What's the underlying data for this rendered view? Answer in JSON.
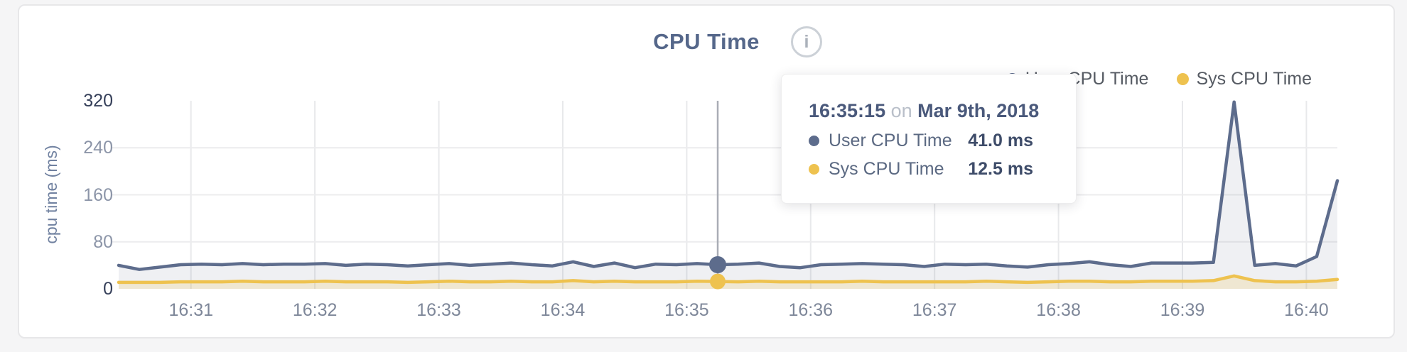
{
  "window": {
    "background": "#f5f5f6",
    "card_background": "#ffffff",
    "card_border": "#e7e7e9"
  },
  "header": {
    "title": "CPU Time",
    "info_icon": "i"
  },
  "legend": {
    "items": [
      {
        "label": "User CPU Time",
        "color": "#5d6c8c"
      },
      {
        "label": "Sys CPU Time",
        "color": "#eec24f"
      }
    ]
  },
  "tooltip": {
    "time": "16:35:15",
    "on_word": "on",
    "date": "Mar 9th, 2018",
    "rows": [
      {
        "label": "User CPU Time",
        "value": "41.0 ms",
        "color": "#5d6c8c"
      },
      {
        "label": "Sys CPU Time",
        "value": "12.5 ms",
        "color": "#eec24f"
      }
    ]
  },
  "chart_data": {
    "type": "area",
    "title": "CPU Time",
    "ylabel": "cpu time (ms)",
    "xlabel": "",
    "ylim": [
      0,
      320
    ],
    "yticks": [
      0,
      80,
      160,
      240,
      320
    ],
    "xticks": [
      "16:31",
      "16:32",
      "16:33",
      "16:34",
      "16:35",
      "16:36",
      "16:37",
      "16:38",
      "16:39",
      "16:40"
    ],
    "x_start": "16:30:25",
    "x_end": "16:40:15",
    "grid": true,
    "legend_position": "top-right",
    "selected_time": "16:35:15",
    "times": [
      "16:30:25",
      "16:30:35",
      "16:30:45",
      "16:30:55",
      "16:31:05",
      "16:31:15",
      "16:31:25",
      "16:31:35",
      "16:31:45",
      "16:31:55",
      "16:32:05",
      "16:32:15",
      "16:32:25",
      "16:32:35",
      "16:32:45",
      "16:32:55",
      "16:33:05",
      "16:33:15",
      "16:33:25",
      "16:33:35",
      "16:33:45",
      "16:33:55",
      "16:34:05",
      "16:34:15",
      "16:34:25",
      "16:34:35",
      "16:34:45",
      "16:34:55",
      "16:35:05",
      "16:35:15",
      "16:35:25",
      "16:35:35",
      "16:35:45",
      "16:35:55",
      "16:36:05",
      "16:36:15",
      "16:36:25",
      "16:36:35",
      "16:36:45",
      "16:36:55",
      "16:37:05",
      "16:37:15",
      "16:37:25",
      "16:37:35",
      "16:37:45",
      "16:37:55",
      "16:38:05",
      "16:38:15",
      "16:38:25",
      "16:38:35",
      "16:38:45",
      "16:38:55",
      "16:39:05",
      "16:39:15",
      "16:39:25",
      "16:39:35",
      "16:39:45",
      "16:39:55",
      "16:40:05",
      "16:40:15"
    ],
    "series": [
      {
        "name": "User CPU Time",
        "color": "#5d6c8c",
        "fill": "rgba(95,110,141,0.10)",
        "unit": "ms",
        "values": [
          40,
          33,
          37,
          41,
          42,
          41,
          43,
          41,
          42,
          42,
          43,
          40,
          42,
          41,
          39,
          41,
          43,
          40,
          42,
          44,
          41,
          39,
          46,
          38,
          44,
          36,
          42,
          41,
          43,
          41,
          42,
          44,
          38,
          36,
          41,
          42,
          43,
          42,
          41,
          38,
          42,
          41,
          42,
          39,
          37,
          41,
          43,
          46,
          41,
          38,
          44,
          44,
          44,
          45,
          318,
          40,
          43,
          39,
          55,
          184
        ]
      },
      {
        "name": "Sys CPU Time",
        "color": "#eec24f",
        "fill": "rgba(238,196,80,0.20)",
        "unit": "ms",
        "values": [
          11,
          11,
          11,
          12,
          12,
          12,
          13,
          12,
          12,
          12,
          13,
          12,
          12,
          12,
          11,
          12,
          13,
          12,
          12,
          13,
          12,
          12,
          14,
          12,
          13,
          12,
          12,
          12,
          13,
          12.5,
          12,
          13,
          12,
          12,
          12,
          12,
          13,
          12,
          12,
          12,
          12,
          12,
          13,
          12,
          11,
          12,
          13,
          13,
          12,
          12,
          13,
          13,
          13,
          14,
          22,
          14,
          12,
          12,
          13,
          16
        ]
      }
    ]
  }
}
